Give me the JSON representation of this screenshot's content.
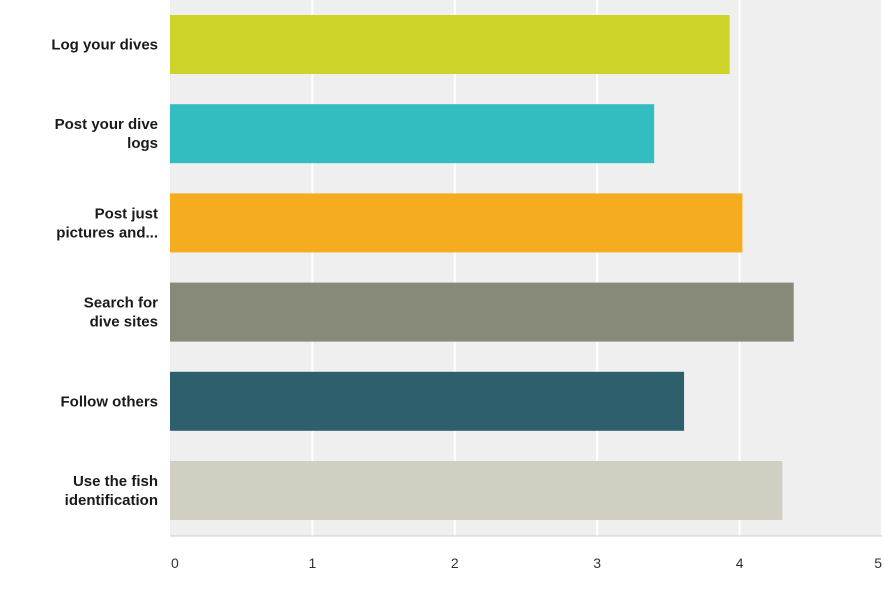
{
  "chart_data": {
    "type": "bar",
    "orientation": "horizontal",
    "title": "",
    "xlabel": "",
    "ylabel": "",
    "categories": [
      [
        "Log your dives"
      ],
      [
        "Post your dive",
        "logs"
      ],
      [
        "Post just",
        "pictures and..."
      ],
      [
        "Search for",
        "dive sites"
      ],
      [
        "Follow others"
      ],
      [
        "Use the fish",
        "identification"
      ]
    ],
    "values": [
      3.93,
      3.4,
      4.02,
      4.38,
      3.61,
      4.3
    ],
    "colors": [
      "#CDD328",
      "#33BDC0",
      "#F5AD1F",
      "#878A78",
      "#2E5F6C",
      "#D0CFC2"
    ],
    "xlim": [
      0,
      5
    ],
    "xticks": [
      "0",
      "1",
      "2",
      "3",
      "4",
      "5"
    ],
    "grid": true,
    "legend": "none"
  }
}
